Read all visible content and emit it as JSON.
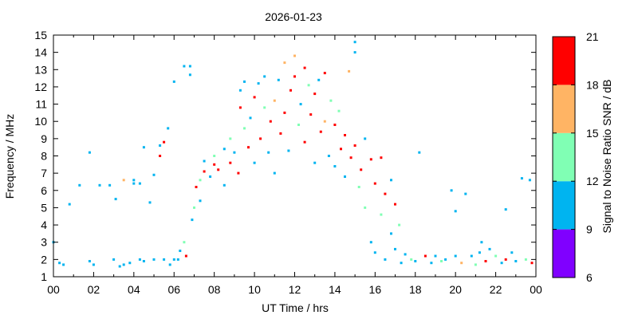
{
  "chart_data": {
    "type": "scatter",
    "title": "2026-01-23",
    "xlabel": "UT Time / hrs",
    "ylabel": "Frequency / MHz",
    "xlim": [
      0,
      24
    ],
    "ylim": [
      1,
      15
    ],
    "x_ticks": [
      "00",
      "02",
      "04",
      "06",
      "08",
      "10",
      "12",
      "14",
      "16",
      "18",
      "20",
      "22",
      "00"
    ],
    "y_ticks": [
      "1",
      "2",
      "3",
      "4",
      "5",
      "6",
      "7",
      "8",
      "9",
      "10",
      "11",
      "12",
      "13",
      "14",
      "15"
    ],
    "colorbar": {
      "label": "Signal to Noise Ratio SNR / dB",
      "range": [
        6,
        21
      ],
      "ticks": [
        "6",
        "9",
        "12",
        "15",
        "18",
        "21"
      ],
      "bands": [
        {
          "min": 6,
          "max": 9,
          "color": "#8000ff"
        },
        {
          "min": 9,
          "max": 12,
          "color": "#00b4f0"
        },
        {
          "min": 12,
          "max": 15,
          "color": "#80ffb4"
        },
        {
          "min": 15,
          "max": 18,
          "color": "#ffb464"
        },
        {
          "min": 18,
          "max": 21,
          "color": "#ff0000"
        }
      ]
    },
    "grid": false,
    "legend": "colorbar-right",
    "points": [
      [
        0.0,
        3.0,
        10
      ],
      [
        0.3,
        1.8,
        10
      ],
      [
        0.5,
        1.7,
        10
      ],
      [
        0.8,
        5.2,
        10
      ],
      [
        1.3,
        6.3,
        10
      ],
      [
        1.8,
        8.2,
        10
      ],
      [
        1.8,
        1.9,
        10
      ],
      [
        2.0,
        1.7,
        10
      ],
      [
        2.3,
        6.3,
        10
      ],
      [
        2.8,
        6.3,
        10
      ],
      [
        3.0,
        2.0,
        10
      ],
      [
        3.1,
        5.5,
        10
      ],
      [
        3.3,
        1.6,
        10
      ],
      [
        3.5,
        1.7,
        10
      ],
      [
        3.5,
        6.6,
        16
      ],
      [
        3.8,
        1.8,
        10
      ],
      [
        4.0,
        6.6,
        10
      ],
      [
        4.0,
        6.4,
        10
      ],
      [
        4.3,
        2.0,
        10
      ],
      [
        4.3,
        6.4,
        10
      ],
      [
        4.5,
        8.5,
        10
      ],
      [
        4.5,
        1.9,
        10
      ],
      [
        4.8,
        5.3,
        10
      ],
      [
        5.0,
        6.9,
        10
      ],
      [
        5.0,
        2.0,
        10
      ],
      [
        5.3,
        8.6,
        10
      ],
      [
        5.3,
        8.0,
        19
      ],
      [
        5.5,
        2.0,
        10
      ],
      [
        5.5,
        8.8,
        19
      ],
      [
        5.7,
        9.6,
        10
      ],
      [
        5.8,
        1.7,
        10
      ],
      [
        6.0,
        12.3,
        10
      ],
      [
        6.0,
        2.0,
        10
      ],
      [
        6.2,
        2.0,
        10
      ],
      [
        6.5,
        13.2,
        10
      ],
      [
        6.8,
        12.7,
        10
      ],
      [
        6.8,
        13.2,
        10
      ],
      [
        6.3,
        2.5,
        10
      ],
      [
        6.5,
        3.0,
        13
      ],
      [
        6.6,
        2.2,
        19
      ],
      [
        6.9,
        4.3,
        10
      ],
      [
        7.0,
        5.0,
        13
      ],
      [
        7.1,
        6.2,
        19
      ],
      [
        7.3,
        5.4,
        10
      ],
      [
        7.3,
        6.6,
        13
      ],
      [
        7.5,
        7.1,
        19
      ],
      [
        7.5,
        7.7,
        10
      ],
      [
        7.8,
        6.8,
        10
      ],
      [
        8.0,
        7.5,
        19
      ],
      [
        8.0,
        8.0,
        13
      ],
      [
        8.2,
        7.2,
        19
      ],
      [
        8.5,
        6.3,
        10
      ],
      [
        8.5,
        8.4,
        10
      ],
      [
        8.8,
        7.6,
        19
      ],
      [
        8.8,
        9.0,
        13
      ],
      [
        9.0,
        8.2,
        10
      ],
      [
        9.2,
        7.0,
        19
      ],
      [
        9.3,
        10.8,
        19
      ],
      [
        9.3,
        11.8,
        10
      ],
      [
        9.5,
        9.6,
        13
      ],
      [
        9.5,
        12.3,
        10
      ],
      [
        9.7,
        8.5,
        19
      ],
      [
        9.8,
        10.2,
        10
      ],
      [
        10.0,
        11.4,
        19
      ],
      [
        10.0,
        7.6,
        10
      ],
      [
        10.2,
        12.2,
        10
      ],
      [
        10.3,
        9.0,
        19
      ],
      [
        10.5,
        10.8,
        13
      ],
      [
        10.5,
        12.6,
        10
      ],
      [
        10.7,
        8.2,
        10
      ],
      [
        10.8,
        10.0,
        19
      ],
      [
        11.0,
        11.2,
        16
      ],
      [
        11.0,
        7.0,
        10
      ],
      [
        11.2,
        12.4,
        10
      ],
      [
        11.3,
        9.3,
        19
      ],
      [
        11.5,
        10.5,
        19
      ],
      [
        11.5,
        13.4,
        16
      ],
      [
        11.7,
        8.3,
        10
      ],
      [
        11.8,
        11.8,
        19
      ],
      [
        12.0,
        13.8,
        16
      ],
      [
        12.0,
        12.6,
        19
      ],
      [
        12.2,
        9.8,
        13
      ],
      [
        12.3,
        11.0,
        10
      ],
      [
        12.5,
        13.1,
        19
      ],
      [
        12.5,
        8.8,
        19
      ],
      [
        12.7,
        12.1,
        13
      ],
      [
        12.8,
        10.4,
        19
      ],
      [
        13.0,
        7.6,
        10
      ],
      [
        13.0,
        11.6,
        19
      ],
      [
        13.2,
        12.4,
        10
      ],
      [
        13.3,
        9.4,
        19
      ],
      [
        13.5,
        10.0,
        16
      ],
      [
        13.5,
        12.8,
        19
      ],
      [
        13.7,
        8.0,
        10
      ],
      [
        13.8,
        11.2,
        13
      ],
      [
        14.0,
        9.8,
        19
      ],
      [
        14.0,
        7.4,
        10
      ],
      [
        14.2,
        10.6,
        13
      ],
      [
        14.3,
        8.4,
        19
      ],
      [
        14.5,
        6.8,
        10
      ],
      [
        14.5,
        9.2,
        19
      ],
      [
        14.7,
        12.9,
        16
      ],
      [
        14.8,
        7.9,
        19
      ],
      [
        15.0,
        14.6,
        10
      ],
      [
        15.0,
        14.0,
        10
      ],
      [
        15.0,
        8.6,
        19
      ],
      [
        15.2,
        6.2,
        13
      ],
      [
        15.3,
        7.2,
        19
      ],
      [
        15.5,
        9.0,
        10
      ],
      [
        15.5,
        5.0,
        13
      ],
      [
        15.8,
        7.8,
        19
      ],
      [
        15.8,
        3.0,
        10
      ],
      [
        16.0,
        6.4,
        19
      ],
      [
        16.0,
        2.4,
        10
      ],
      [
        16.3,
        7.9,
        19
      ],
      [
        16.3,
        4.6,
        13
      ],
      [
        16.5,
        5.8,
        19
      ],
      [
        16.5,
        2.0,
        10
      ],
      [
        16.8,
        6.6,
        10
      ],
      [
        16.8,
        3.5,
        10
      ],
      [
        17.0,
        5.2,
        19
      ],
      [
        17.0,
        2.6,
        10
      ],
      [
        17.2,
        4.0,
        13
      ],
      [
        17.3,
        1.8,
        10
      ],
      [
        17.5,
        2.3,
        10
      ],
      [
        17.8,
        2.0,
        13
      ],
      [
        18.0,
        1.9,
        10
      ],
      [
        18.2,
        8.2,
        10
      ],
      [
        18.5,
        2.2,
        19
      ],
      [
        18.8,
        1.8,
        10
      ],
      [
        19.0,
        2.2,
        10
      ],
      [
        19.3,
        1.9,
        13
      ],
      [
        19.5,
        2.0,
        10
      ],
      [
        19.8,
        6.0,
        10
      ],
      [
        20.0,
        4.8,
        10
      ],
      [
        20.0,
        2.2,
        10
      ],
      [
        20.3,
        1.8,
        16
      ],
      [
        20.5,
        5.8,
        10
      ],
      [
        20.8,
        2.2,
        10
      ],
      [
        21.0,
        1.7,
        13
      ],
      [
        21.2,
        2.4,
        10
      ],
      [
        21.3,
        3.0,
        10
      ],
      [
        21.5,
        1.9,
        19
      ],
      [
        21.7,
        2.6,
        10
      ],
      [
        22.0,
        2.2,
        13
      ],
      [
        22.3,
        1.8,
        10
      ],
      [
        22.5,
        4.9,
        10
      ],
      [
        22.5,
        2.0,
        19
      ],
      [
        22.8,
        2.4,
        10
      ],
      [
        23.0,
        1.9,
        10
      ],
      [
        23.3,
        6.7,
        10
      ],
      [
        23.5,
        2.0,
        13
      ],
      [
        23.7,
        6.6,
        10
      ],
      [
        23.8,
        1.8,
        19
      ]
    ]
  }
}
